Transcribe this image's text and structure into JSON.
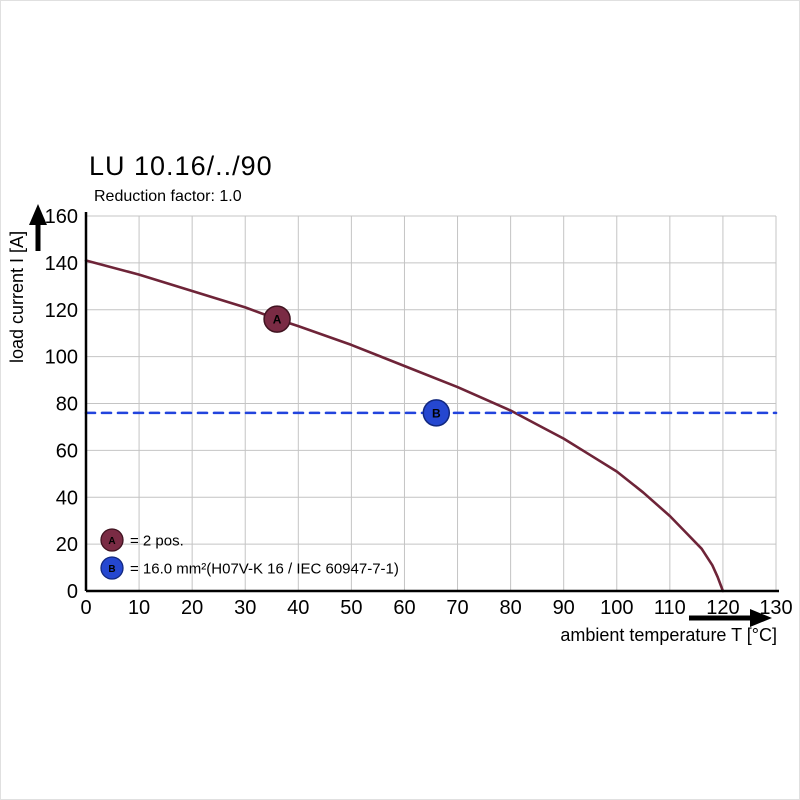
{
  "title": "LU 10.16/../90",
  "subtitle": "Reduction factor: 1.0",
  "colors": {
    "grid": "#c4c4c4",
    "axis": "#000000",
    "curve": "#6e2438",
    "limit_line": "#2244dd"
  },
  "chart_data": {
    "type": "line",
    "title": "LU 10.16/../90",
    "subtitle": "Reduction factor: 1.0",
    "xlabel": "ambient temperature T [°C]",
    "ylabel": "load current I [A]",
    "xlim": [
      0,
      130
    ],
    "ylim": [
      0,
      160
    ],
    "x_ticks": [
      0,
      10,
      20,
      30,
      40,
      50,
      60,
      70,
      80,
      90,
      100,
      110,
      120,
      130
    ],
    "y_ticks": [
      0,
      20,
      40,
      60,
      80,
      100,
      120,
      140,
      160
    ],
    "grid": true,
    "series": [
      {
        "name": "derating-curve",
        "color": "#6e2438",
        "style": "solid",
        "points": [
          [
            0,
            141
          ],
          [
            10,
            135
          ],
          [
            20,
            128
          ],
          [
            30,
            121
          ],
          [
            36,
            116
          ],
          [
            40,
            113
          ],
          [
            50,
            105
          ],
          [
            60,
            96
          ],
          [
            70,
            87
          ],
          [
            80,
            77
          ],
          [
            85,
            71
          ],
          [
            90,
            65
          ],
          [
            95,
            58
          ],
          [
            100,
            51
          ],
          [
            105,
            42
          ],
          [
            110,
            32
          ],
          [
            113,
            25
          ],
          [
            116,
            18
          ],
          [
            118,
            11
          ],
          [
            119,
            6
          ],
          [
            120,
            0
          ]
        ]
      },
      {
        "name": "limit-line",
        "color": "#2244dd",
        "style": "dashed",
        "points": [
          [
            0,
            76
          ],
          [
            130,
            76
          ]
        ]
      }
    ],
    "markers": [
      {
        "label": "A",
        "x": 36,
        "y": 116,
        "fill": "#7a2b44",
        "stroke": "#401320"
      },
      {
        "label": "B",
        "x": 66,
        "y": 76,
        "fill": "#2547d0",
        "stroke": "#12287f"
      }
    ],
    "legend": [
      {
        "label": "A",
        "fill": "#7a2b44",
        "stroke": "#401320",
        "text": "= 2 pos."
      },
      {
        "label": "B",
        "fill": "#2547d0",
        "stroke": "#12287f",
        "text": "= 16.0 mm²(H07V-K 16 / IEC 60947-7-1)"
      }
    ],
    "legend_position": "bottom-left"
  }
}
